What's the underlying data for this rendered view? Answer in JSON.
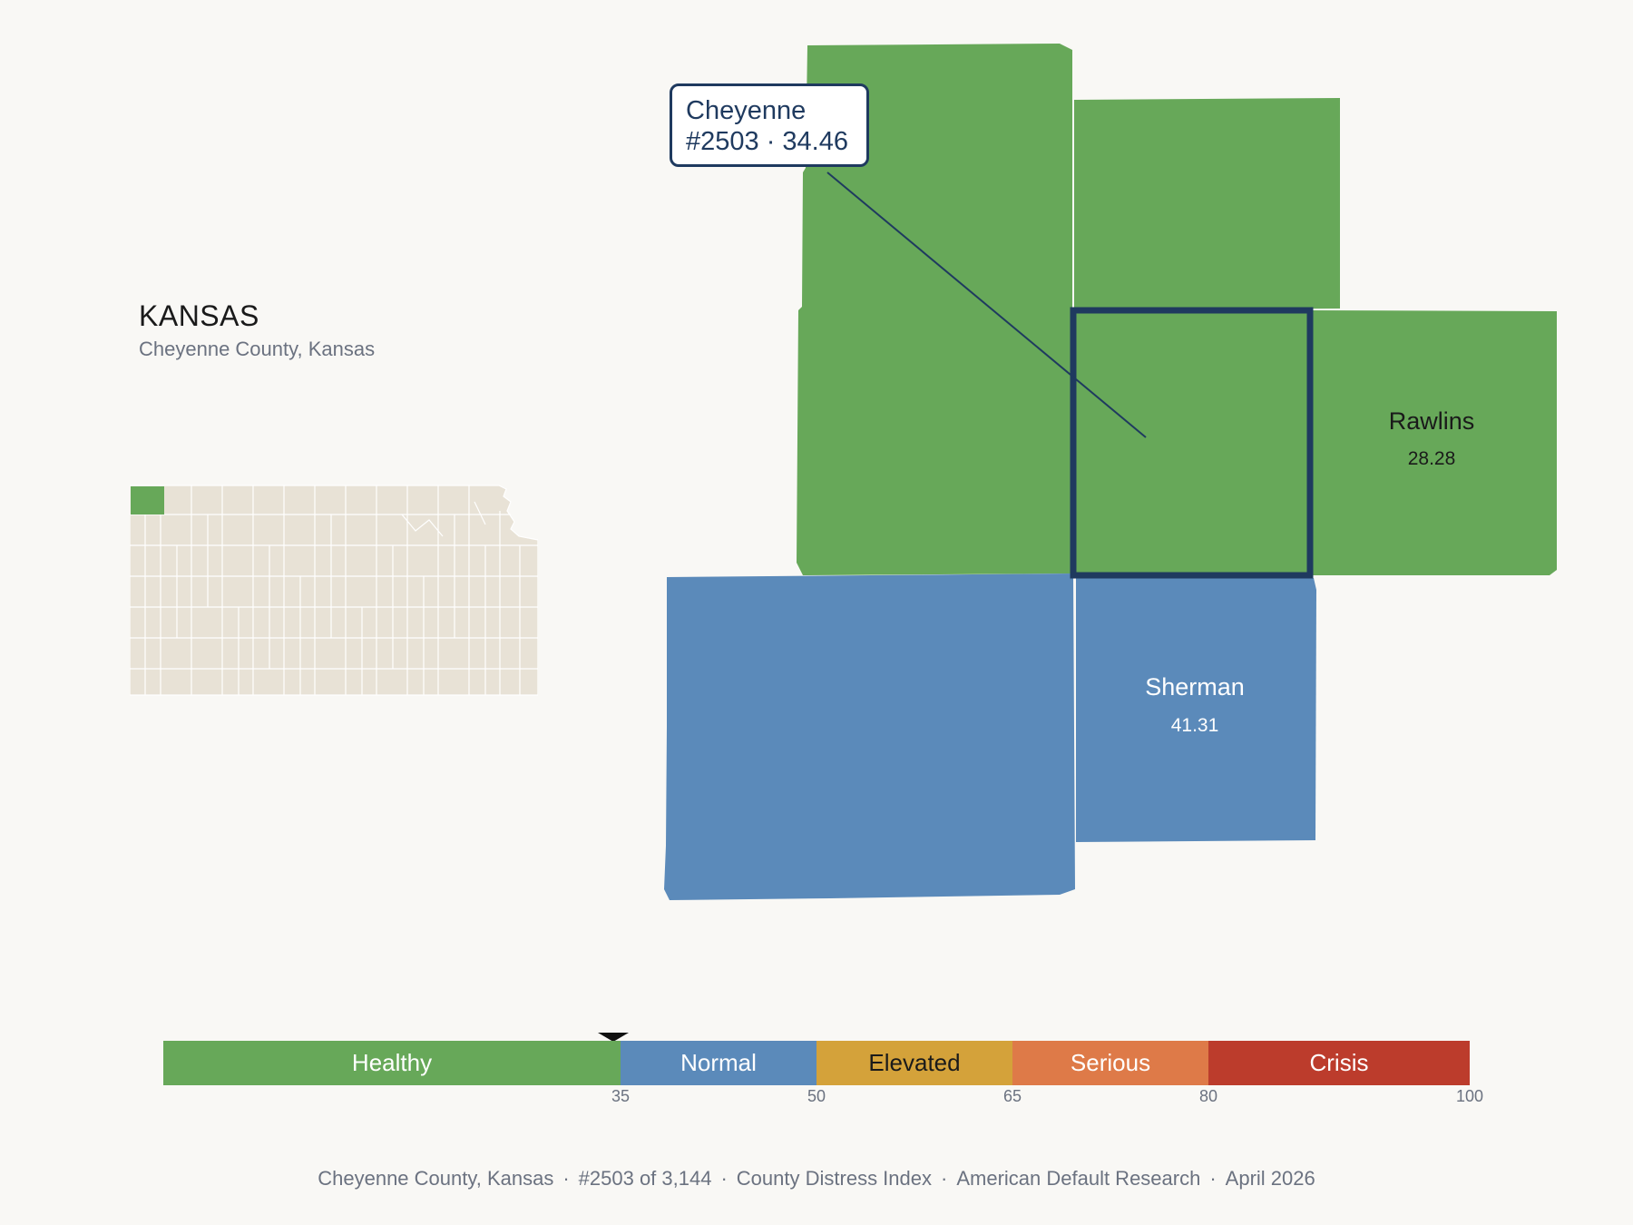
{
  "state": {
    "name": "KANSAS",
    "subtitle": "Cheyenne County, Kansas"
  },
  "colors": {
    "healthy": "#67a859",
    "normal": "#5b8aba",
    "elevated": "#d4a23a",
    "serious": "#de7a48",
    "crisis": "#bc3c2c",
    "highlight_border": "#1f3a5f",
    "inset_fill": "#e8e2d6"
  },
  "map": {
    "counties": [
      {
        "name": "Rawlins",
        "value": "28.28",
        "category": "healthy"
      },
      {
        "name": "Sherman",
        "value": "41.31",
        "category": "normal"
      }
    ],
    "highlighted": {
      "name": "Cheyenne",
      "rank_value": "#2503 · 34.46",
      "category": "healthy"
    }
  },
  "legend": {
    "segments": [
      {
        "label": "Healthy",
        "min": 0,
        "max": 35,
        "color": "#67a859",
        "text_color": "#ffffff"
      },
      {
        "label": "Normal",
        "min": 35,
        "max": 50,
        "color": "#5b8aba",
        "text_color": "#ffffff"
      },
      {
        "label": "Elevated",
        "min": 50,
        "max": 65,
        "color": "#d4a23a",
        "text_color": "#1a1a1a"
      },
      {
        "label": "Serious",
        "min": 65,
        "max": 80,
        "color": "#de7a48",
        "text_color": "#ffffff"
      },
      {
        "label": "Crisis",
        "min": 80,
        "max": 100,
        "color": "#bc3c2c",
        "text_color": "#ffffff"
      }
    ],
    "ticks": [
      "35",
      "50",
      "65",
      "80",
      "100"
    ],
    "marker_value": 34.46
  },
  "footer": {
    "items": [
      "Cheyenne County, Kansas",
      "#2503 of 3,144",
      "County Distress Index",
      "American Default Research",
      "April 2026"
    ]
  }
}
